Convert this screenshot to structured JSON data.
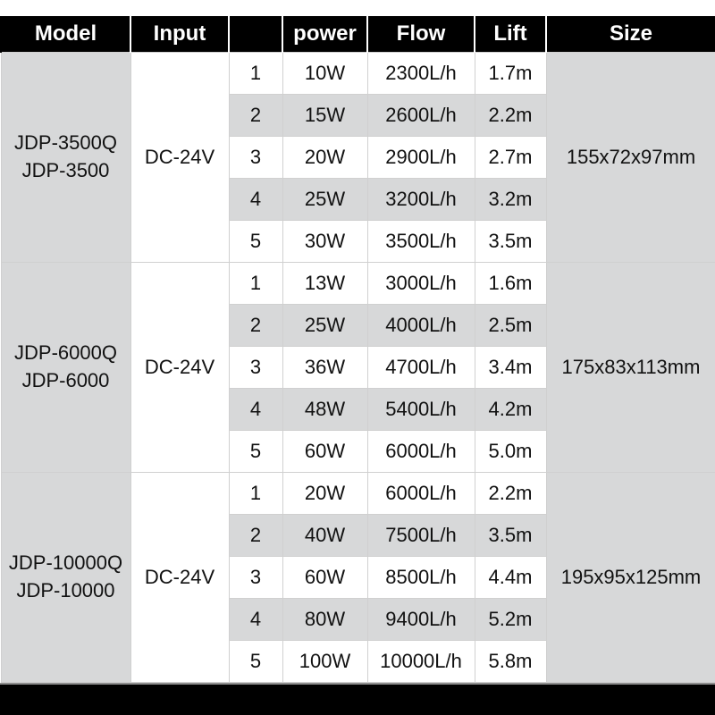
{
  "columns": {
    "model": "Model",
    "input": "Input",
    "level": "",
    "power": "power",
    "flow": "Flow",
    "lift": "Lift",
    "size": "Size"
  },
  "col_widths": {
    "model": 145,
    "input": 110,
    "level": 60,
    "power": 95,
    "flow": 120,
    "lift": 80,
    "size": 190
  },
  "header_bg": "#000000",
  "header_fg": "#ffffff",
  "row_even_bg": "#d7d8d9",
  "row_odd_bg": "#ffffff",
  "cell_border": "#d0d0d0",
  "groups": [
    {
      "model_lines": [
        "JDP-3500Q",
        "JDP-3500"
      ],
      "input": "DC-24V",
      "size": "155x72x97mm",
      "rows": [
        {
          "level": "1",
          "power": "10W",
          "flow": "2300L/h",
          "lift": "1.7m"
        },
        {
          "level": "2",
          "power": "15W",
          "flow": "2600L/h",
          "lift": "2.2m"
        },
        {
          "level": "3",
          "power": "20W",
          "flow": "2900L/h",
          "lift": "2.7m"
        },
        {
          "level": "4",
          "power": "25W",
          "flow": "3200L/h",
          "lift": "3.2m"
        },
        {
          "level": "5",
          "power": "30W",
          "flow": "3500L/h",
          "lift": "3.5m"
        }
      ]
    },
    {
      "model_lines": [
        "JDP-6000Q",
        "JDP-6000"
      ],
      "input": "DC-24V",
      "size": "175x83x113mm",
      "rows": [
        {
          "level": "1",
          "power": "13W",
          "flow": "3000L/h",
          "lift": "1.6m"
        },
        {
          "level": "2",
          "power": "25W",
          "flow": "4000L/h",
          "lift": "2.5m"
        },
        {
          "level": "3",
          "power": "36W",
          "flow": "4700L/h",
          "lift": "3.4m"
        },
        {
          "level": "4",
          "power": "48W",
          "flow": "5400L/h",
          "lift": "4.2m"
        },
        {
          "level": "5",
          "power": "60W",
          "flow": "6000L/h",
          "lift": "5.0m"
        }
      ]
    },
    {
      "model_lines": [
        "JDP-10000Q",
        "JDP-10000"
      ],
      "input": "DC-24V",
      "size": "195x95x125mm",
      "rows": [
        {
          "level": "1",
          "power": "20W",
          "flow": "6000L/h",
          "lift": "2.2m"
        },
        {
          "level": "2",
          "power": "40W",
          "flow": "7500L/h",
          "lift": "3.5m"
        },
        {
          "level": "3",
          "power": "60W",
          "flow": "8500L/h",
          "lift": "4.4m"
        },
        {
          "level": "4",
          "power": "80W",
          "flow": "9400L/h",
          "lift": "5.2m"
        },
        {
          "level": "5",
          "power": "100W",
          "flow": "10000L/h",
          "lift": "5.8m"
        }
      ]
    }
  ]
}
